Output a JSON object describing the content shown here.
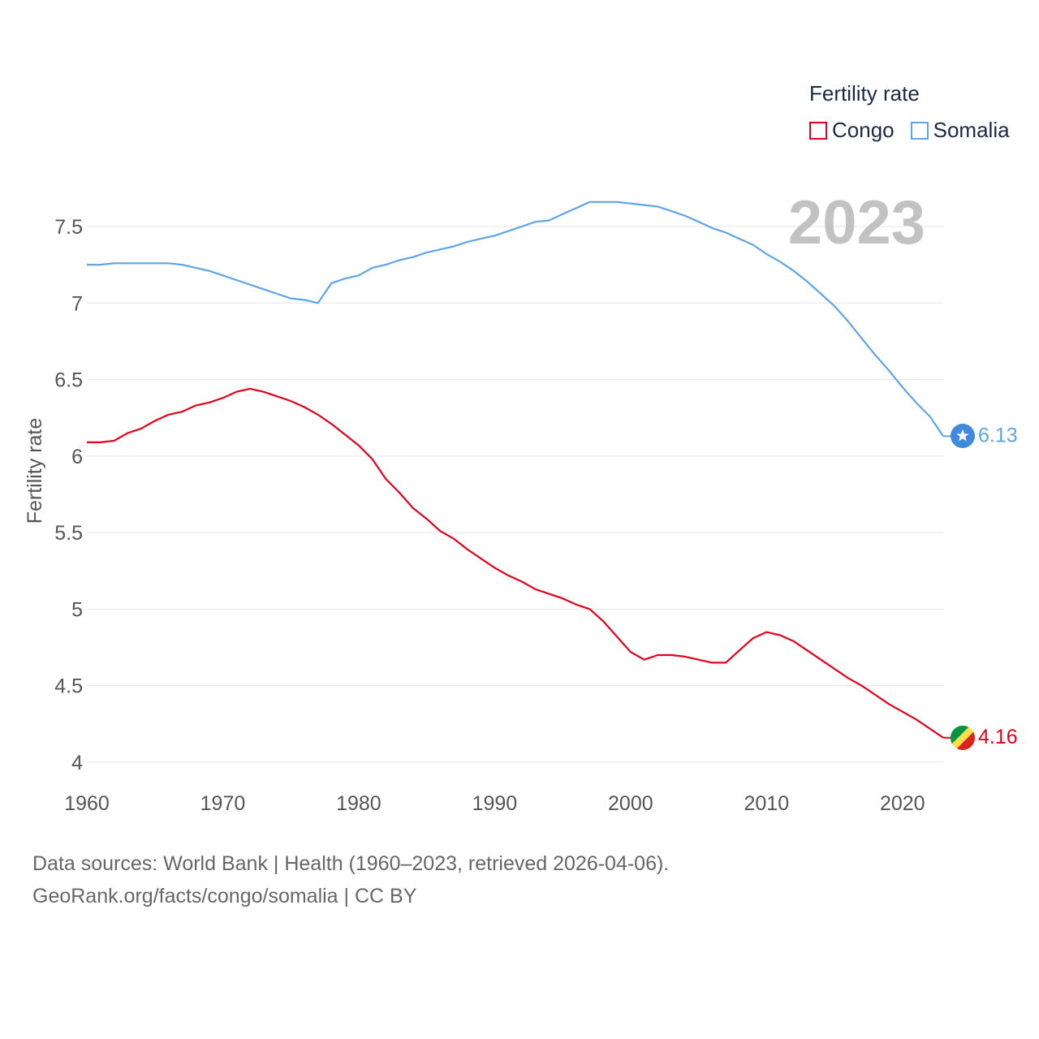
{
  "chart_data": {
    "type": "line",
    "title": "Fertility rate",
    "ylabel": "Fertility rate",
    "xlabel": "",
    "year_label": "2023",
    "xlim": [
      1960,
      2023
    ],
    "ylim": [
      4,
      7.75
    ],
    "x_ticks": [
      1960,
      1970,
      1980,
      1990,
      2000,
      2010,
      2020
    ],
    "y_ticks": [
      4,
      4.5,
      5,
      5.5,
      6,
      6.5,
      7,
      7.5
    ],
    "y_tick_labels": [
      "4",
      "4.5",
      "5",
      "5.5",
      "6",
      "6.5",
      "7",
      "7.5"
    ],
    "x": [
      1960,
      1961,
      1962,
      1963,
      1964,
      1965,
      1966,
      1967,
      1968,
      1969,
      1970,
      1971,
      1972,
      1973,
      1974,
      1975,
      1976,
      1977,
      1978,
      1979,
      1980,
      1981,
      1982,
      1983,
      1984,
      1985,
      1986,
      1987,
      1988,
      1989,
      1990,
      1991,
      1992,
      1993,
      1994,
      1995,
      1996,
      1997,
      1998,
      1999,
      2000,
      2001,
      2002,
      2003,
      2004,
      2005,
      2006,
      2007,
      2008,
      2009,
      2010,
      2011,
      2012,
      2013,
      2014,
      2015,
      2016,
      2017,
      2018,
      2019,
      2020,
      2021,
      2022,
      2023
    ],
    "series": [
      {
        "name": "Congo",
        "color": "#e3001b",
        "end_label": "4.16",
        "values": [
          6.09,
          6.09,
          6.1,
          6.15,
          6.18,
          6.23,
          6.27,
          6.29,
          6.33,
          6.35,
          6.38,
          6.42,
          6.44,
          6.42,
          6.39,
          6.36,
          6.32,
          6.27,
          6.21,
          6.14,
          6.07,
          5.98,
          5.85,
          5.76,
          5.66,
          5.59,
          5.51,
          5.46,
          5.39,
          5.33,
          5.27,
          5.22,
          5.18,
          5.13,
          5.1,
          5.07,
          5.03,
          5.0,
          4.92,
          4.82,
          4.72,
          4.67,
          4.7,
          4.7,
          4.69,
          4.67,
          4.65,
          4.65,
          4.73,
          4.81,
          4.85,
          4.83,
          4.79,
          4.73,
          4.67,
          4.61,
          4.55,
          4.5,
          4.44,
          4.38,
          4.33,
          4.28,
          4.22,
          4.16
        ]
      },
      {
        "name": "Somalia",
        "color": "#5ea5e8",
        "end_label": "6.13",
        "values": [
          7.25,
          7.25,
          7.26,
          7.26,
          7.26,
          7.26,
          7.26,
          7.25,
          7.23,
          7.21,
          7.18,
          7.15,
          7.12,
          7.09,
          7.06,
          7.03,
          7.02,
          7.0,
          7.13,
          7.16,
          7.18,
          7.23,
          7.25,
          7.28,
          7.3,
          7.33,
          7.35,
          7.37,
          7.4,
          7.42,
          7.44,
          7.47,
          7.5,
          7.53,
          7.54,
          7.58,
          7.62,
          7.66,
          7.66,
          7.66,
          7.65,
          7.64,
          7.63,
          7.6,
          7.57,
          7.53,
          7.49,
          7.46,
          7.42,
          7.38,
          7.32,
          7.27,
          7.21,
          7.14,
          7.06,
          6.98,
          6.88,
          6.77,
          6.66,
          6.56,
          6.45,
          6.35,
          6.26,
          6.13
        ]
      }
    ]
  },
  "footer": {
    "line1": "Data sources: World Bank | Health (1960–2023, retrieved 2026-04-06).",
    "line2": "GeoRank.org/facts/congo/somalia | CC BY"
  },
  "icons": {
    "congo_flag": "congo-flag-icon",
    "somalia_flag": "somalia-flag-icon"
  }
}
